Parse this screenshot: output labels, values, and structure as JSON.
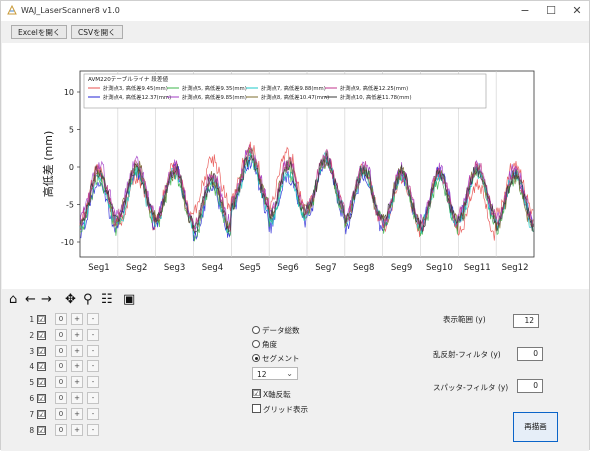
{
  "window": {
    "title": "WAJ_LaserScanner8 v1.0",
    "minimize": "−",
    "maximize": "☐",
    "close": "✕"
  },
  "toolbar": {
    "excel_label": "Excelを開く",
    "csv_label": "CSVを開く"
  },
  "chart_data": {
    "type": "line",
    "title": "",
    "ylabel": "高低差 (mm)",
    "xlabel": "",
    "ylim": [
      -12,
      12.8
    ],
    "yticks": [
      -10,
      -5,
      0,
      5,
      10
    ],
    "categories": [
      "Seg1",
      "Seg2",
      "Seg3",
      "Seg4",
      "Seg5",
      "Seg6",
      "Seg7",
      "Seg8",
      "Seg9",
      "Seg10",
      "Seg11",
      "Seg12"
    ],
    "grid": "vertical lines at segment boundaries",
    "legend_title": "AVM220テーブルライナ 段差値",
    "legend_position": "top-left",
    "samples_per_segment": 40,
    "series": [
      {
        "name": "計測点3, 高低差9.45(mm)",
        "color": "#e8514f",
        "peak": [
          -0.5,
          -1.2,
          0.2,
          1.2,
          2.5,
          1.8,
          1.2,
          -0.5,
          -1.5,
          -1.0,
          -2.2,
          0.5
        ]
      },
      {
        "name": "計測点4, 高低差12.37(mm)",
        "color": "#2323d6",
        "peak": [
          -1.8,
          -0.5,
          -0.2,
          -2.5,
          0.8,
          -1.0,
          0.5,
          -1.2,
          -1.0,
          -0.8,
          -0.2,
          -1.0
        ]
      },
      {
        "name": "計測点5, 高低差9.35(mm)",
        "color": "#3cb44b",
        "peak": [
          -1.5,
          -0.5,
          -0.8,
          -2.5,
          1.5,
          -0.5,
          1.0,
          -0.2,
          -1.2,
          -1.6,
          -0.5,
          -1.4
        ]
      },
      {
        "name": "計測点6, 高低差9.85(mm)",
        "color": "#a33dc6",
        "peak": [
          0.2,
          0.5,
          0.0,
          -1.0,
          2.2,
          0.5,
          1.2,
          0.2,
          -0.5,
          -0.3,
          0.2,
          -0.3
        ]
      },
      {
        "name": "計測点7, 高低差9.88(mm)",
        "color": "#1ec8c8",
        "peak": [
          -1.0,
          -0.8,
          -0.5,
          -1.8,
          1.2,
          -0.8,
          1.0,
          -0.5,
          -1.0,
          -1.2,
          -0.5,
          -1.0
        ]
      },
      {
        "name": "計測点8, 高低差10.47(mm)",
        "color": "#7d6d2e",
        "peak": [
          -0.8,
          0.2,
          -0.6,
          -1.4,
          1.8,
          0.4,
          0.8,
          -0.6,
          -0.6,
          -0.8,
          0.0,
          -1.2
        ]
      },
      {
        "name": "計測点9, 高低差12.25(mm)",
        "color": "#c2368c",
        "peak": [
          -0.5,
          0.3,
          -0.2,
          -1.2,
          2.0,
          0.6,
          1.5,
          -0.2,
          -0.8,
          -0.9,
          0.3,
          -0.6
        ]
      },
      {
        "name": "計測点10, 高低差11.78(mm)",
        "color": "#3b3b3b",
        "peak": [
          -0.6,
          -0.2,
          -0.4,
          -1.6,
          1.4,
          0.2,
          1.1,
          -0.4,
          -0.7,
          -1.0,
          -0.2,
          -0.8
        ]
      }
    ]
  },
  "nav_icons": [
    {
      "name": "home-icon",
      "glyph": "⌂"
    },
    {
      "name": "back-arrow-icon",
      "glyph": "←"
    },
    {
      "name": "forward-arrow-icon",
      "glyph": "→"
    },
    {
      "name": "pan-icon",
      "glyph": "✥"
    },
    {
      "name": "zoom-icon",
      "glyph": "⚲"
    },
    {
      "name": "configure-subplots-icon",
      "glyph": "☷"
    },
    {
      "name": "save-icon",
      "glyph": "▣"
    }
  ],
  "rows": [
    {
      "label": "1 :",
      "checked": "☑",
      "zero": "0",
      "plus": "+",
      "minus": "-"
    },
    {
      "label": "2 :",
      "checked": "☑",
      "zero": "0",
      "plus": "+",
      "minus": "-"
    },
    {
      "label": "3 :",
      "checked": "☑",
      "zero": "0",
      "plus": "+",
      "minus": "-"
    },
    {
      "label": "4 :",
      "checked": "☑",
      "zero": "0",
      "plus": "+",
      "minus": "-"
    },
    {
      "label": "5 :",
      "checked": "☑",
      "zero": "0",
      "plus": "+",
      "minus": "-"
    },
    {
      "label": "6 :",
      "checked": "☑",
      "zero": "0",
      "plus": "+",
      "minus": "-"
    },
    {
      "label": "7 :",
      "checked": "☑",
      "zero": "0",
      "plus": "+",
      "minus": "-"
    },
    {
      "label": "8 :",
      "checked": "☑",
      "zero": "0",
      "plus": "+",
      "minus": "-"
    }
  ],
  "mode": {
    "opt_count": "データ総数",
    "opt_angle": "角度",
    "opt_segment": "セグメント",
    "selected": "セグメント",
    "segment_value": "12",
    "x_reverse_label": "X軸反転",
    "x_reverse_checked": "☑",
    "grid_label": "グリッド表示",
    "grid_checked": ""
  },
  "settings": {
    "range_label": "表示範囲 (y)",
    "range_value": "12",
    "reflect_label": "乱反射-フィルタ (y)",
    "reflect_value": "0",
    "spatter_label": "スパッタ-フィルタ (y)",
    "spatter_value": "0",
    "redraw_label": "再描画"
  }
}
